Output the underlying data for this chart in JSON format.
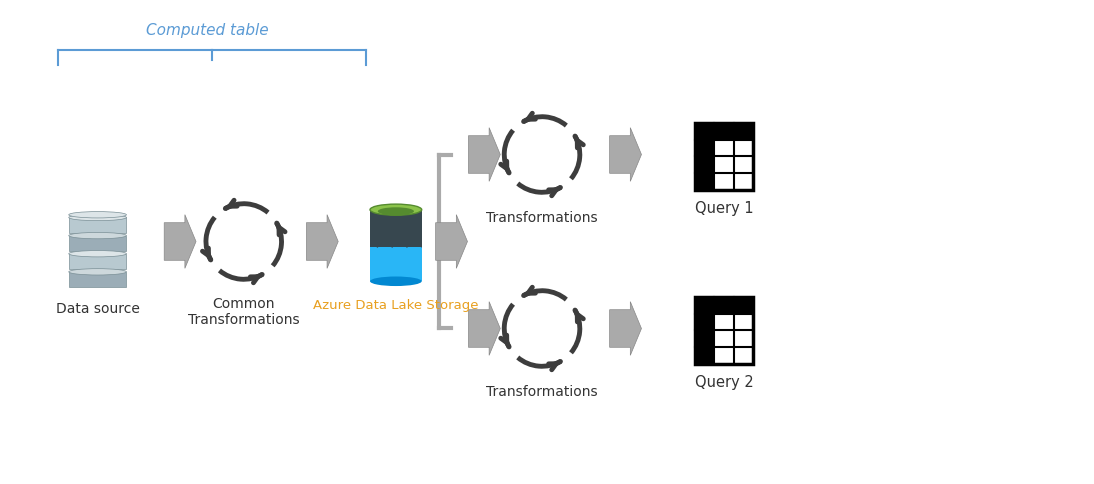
{
  "bg_color": "#ffffff",
  "title": "",
  "computed_table_label": "Computed table",
  "computed_table_color": "#5b9bd5",
  "data_source_label": "Data source",
  "common_trans_label": "Common\nTransformations",
  "azure_label": "Azure Data Lake Storage",
  "azure_color": "#e8a020",
  "trans1_label": "Transformations",
  "trans2_label": "Transformations",
  "query1_label": "Query 1",
  "query2_label": "Query 2",
  "arrow_color": "#808080",
  "cycle_arrow_color": "#404040",
  "db_colors": {
    "top": "#b0bec5",
    "mid": "#90a4ae",
    "dark": "#607d8b",
    "light": "#cfd8dc",
    "stripe": "#eceff1"
  },
  "lake_colors": {
    "green_top": "#8bc34a",
    "green_rim": "#558b2f",
    "black_body": "#37474f",
    "blue_body": "#29b6f6",
    "blue_dark": "#0288d1",
    "black_drip": "#263238"
  },
  "grid_color": "#000000",
  "grid_bg": "#ffffff"
}
